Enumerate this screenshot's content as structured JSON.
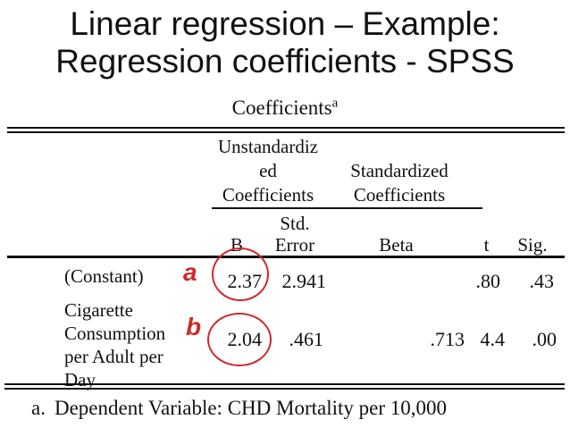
{
  "colors": {
    "annotation_red": "#cc2b2b",
    "text_black": "#111111",
    "background": "#ffffff"
  },
  "slide": {
    "title_line1": "Linear regression – Example:",
    "title_line2": "Regression coefficients - SPSS"
  },
  "table": {
    "caption": "Coefficients",
    "caption_superscript": "a",
    "group_headers": {
      "unstandardized_lines": [
        "Unstandardiz",
        "ed",
        "Coefficients"
      ],
      "standardized_lines": [
        "Standardized",
        "Coefficients"
      ]
    },
    "column_headers": {
      "b": "B",
      "std_error_line1": "Std.",
      "std_error_line2": "Error",
      "beta": "Beta",
      "t": "t",
      "sig": "Sig."
    },
    "rows": [
      {
        "label_lines": [
          "(Constant)"
        ],
        "b": "2.37",
        "std_error": "2.941",
        "beta": "",
        "t": ".80",
        "sig": ".43"
      },
      {
        "label_lines": [
          "Cigarette",
          "Consumption",
          "per Adult per",
          "Day"
        ],
        "b": "2.04",
        "std_error": ".461",
        "beta": ".713",
        "t": "4.4",
        "sig": ".00"
      }
    ],
    "footnote_marker": "a.",
    "footnote_text": "Dependent Variable: CHD Mortality per 10,000"
  },
  "annotations": {
    "label_a": "a",
    "label_b": "b"
  }
}
